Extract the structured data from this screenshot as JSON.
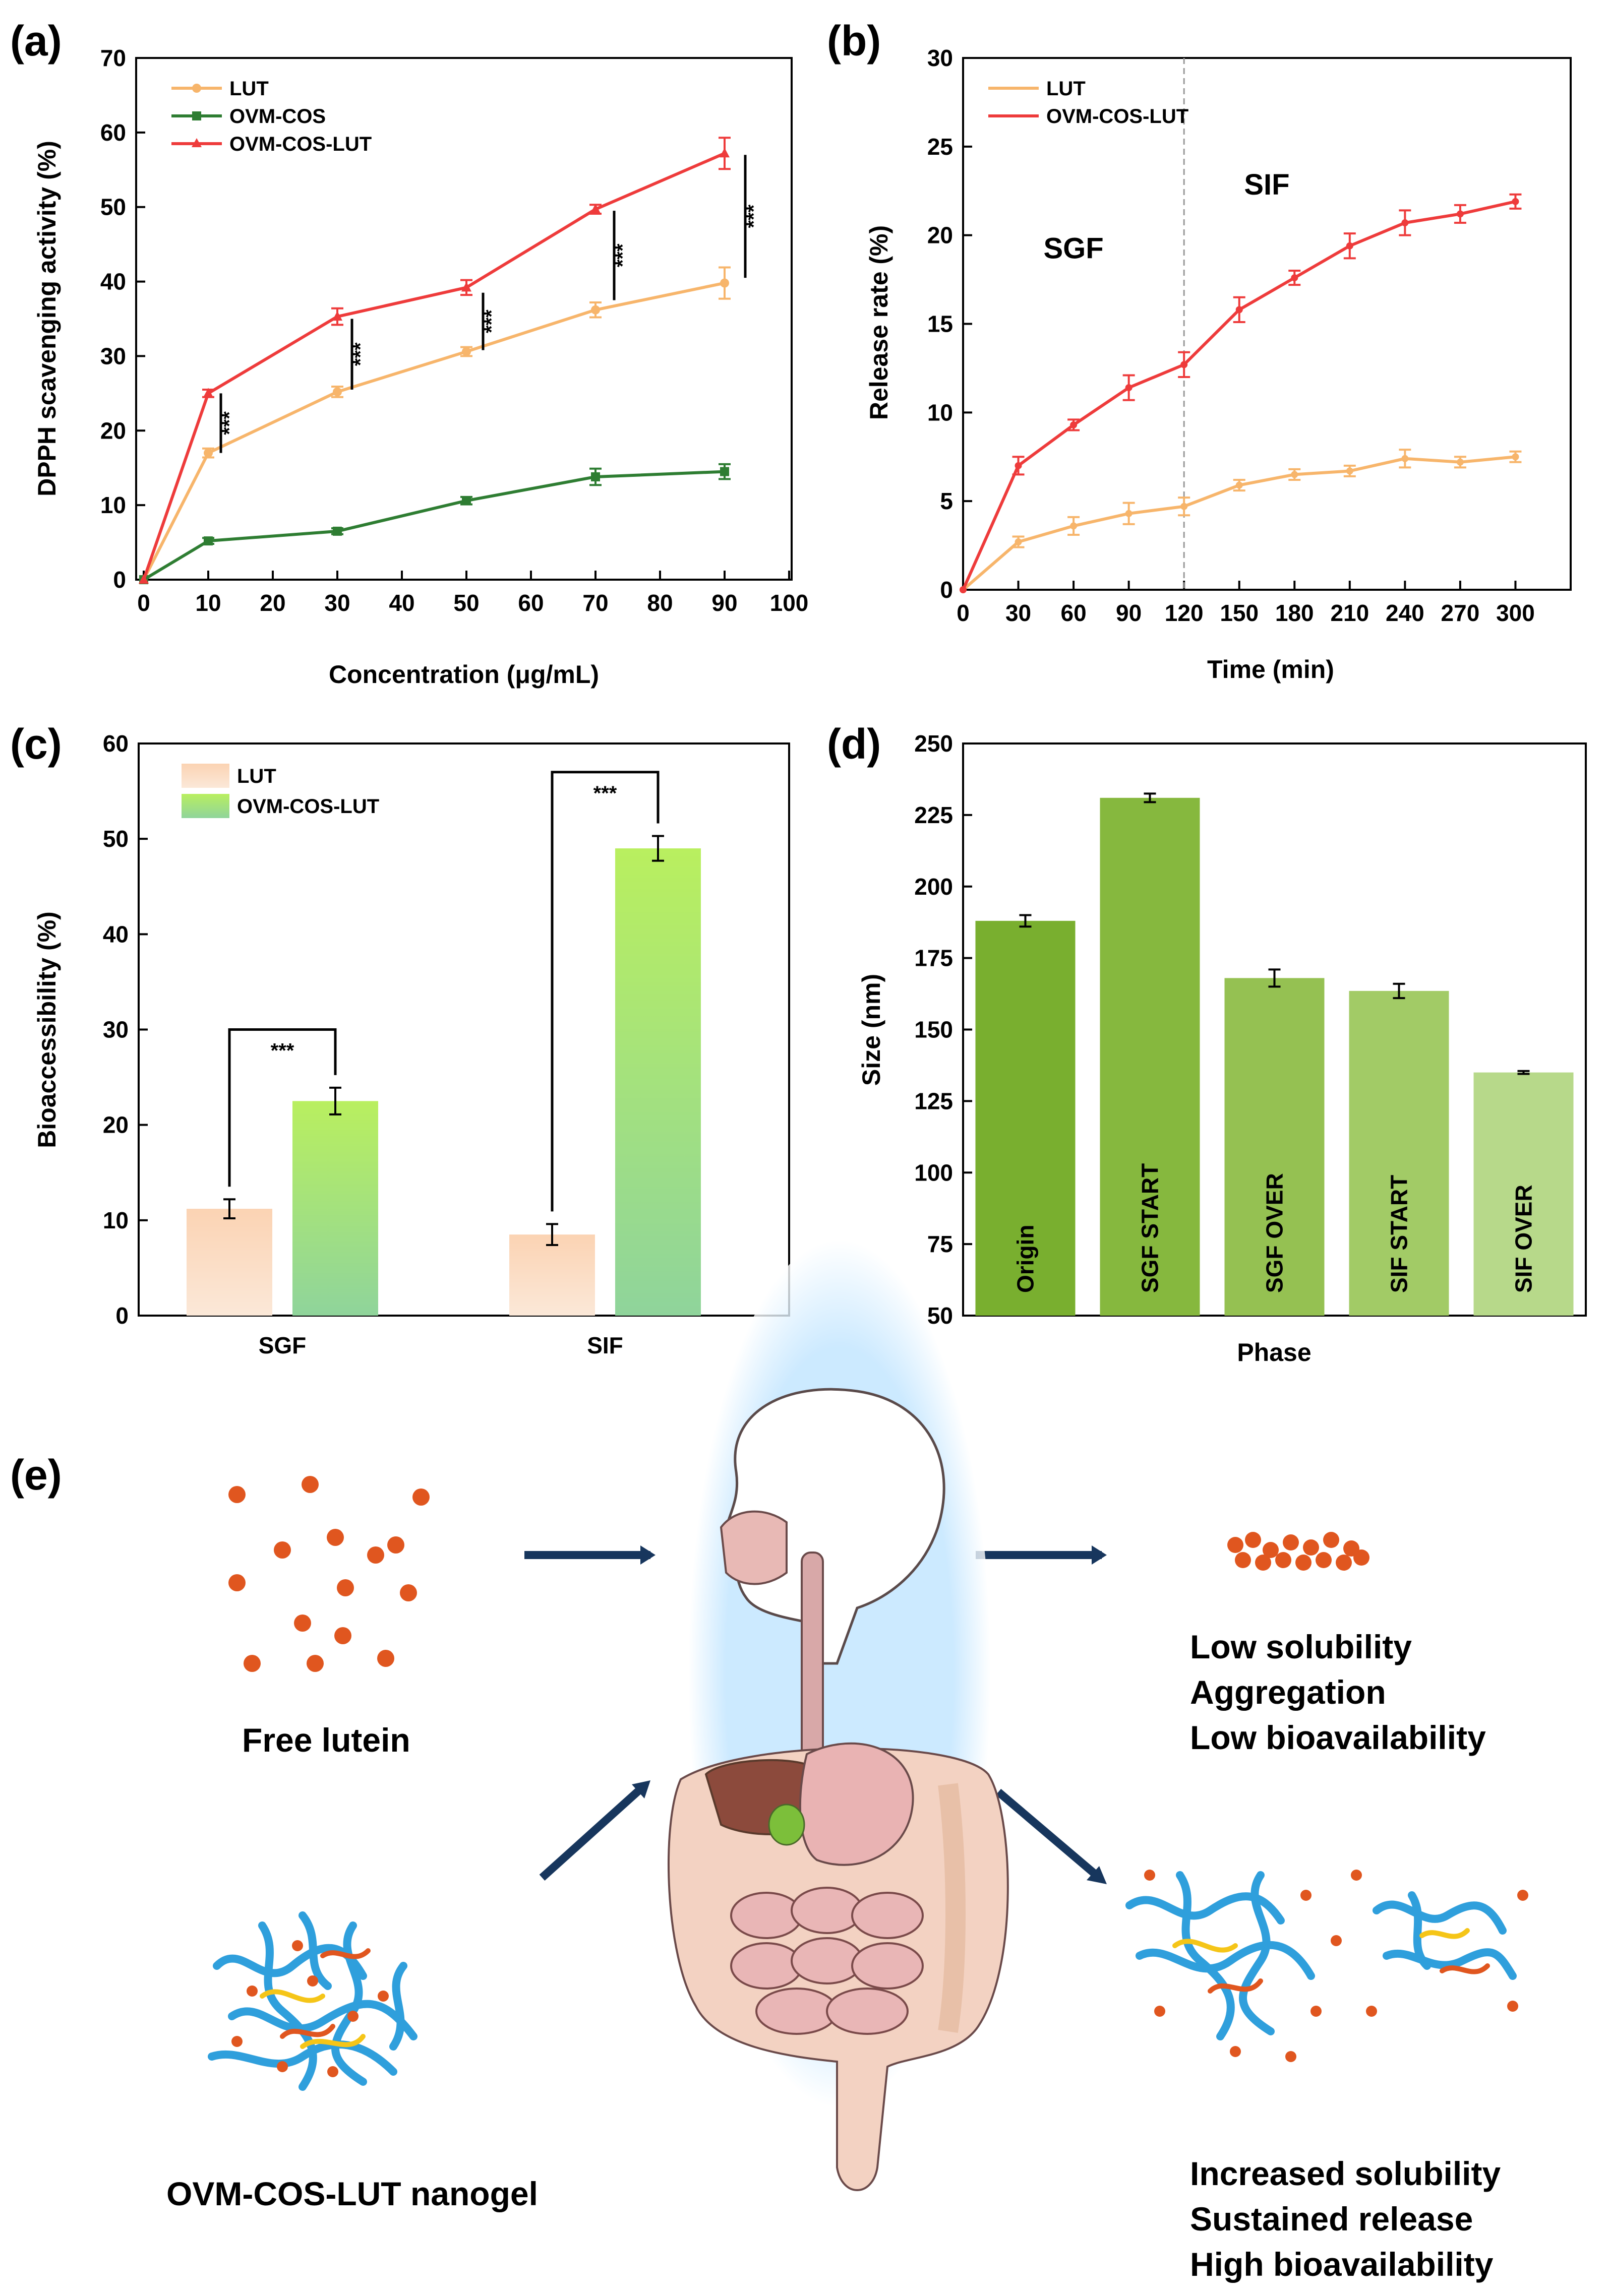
{
  "panel_labels": {
    "a": "(a)",
    "b": "(b)",
    "c": "(c)",
    "d": "(d)",
    "e": "(e)"
  },
  "chart_data": [
    {
      "id": "a",
      "type": "line",
      "xlabel": "Concentration (μg/mL)",
      "ylabel": "DPPH scavenging activity (%)",
      "xlim": [
        0,
        100
      ],
      "ylim": [
        0,
        70
      ],
      "xticks": [
        0,
        10,
        20,
        30,
        40,
        50,
        60,
        70,
        80,
        90,
        100
      ],
      "yticks": [
        0,
        10,
        20,
        30,
        40,
        50,
        60,
        70
      ],
      "x": [
        0,
        10,
        30,
        50,
        70,
        90
      ],
      "series": [
        {
          "name": "LUT",
          "color": "#f7b56b",
          "marker": "circle",
          "values": [
            0,
            17,
            25.2,
            30.6,
            36.2,
            39.8
          ],
          "errors": [
            0,
            0.6,
            0.7,
            0.6,
            1.0,
            2.1
          ]
        },
        {
          "name": "OVM-COS",
          "color": "#2e7d32",
          "marker": "square",
          "values": [
            0,
            5.2,
            6.5,
            10.6,
            13.8,
            14.5
          ],
          "errors": [
            0,
            0.4,
            0.4,
            0.5,
            1.1,
            1.0
          ]
        },
        {
          "name": "OVM-COS-LUT",
          "color": "#ee3b3b",
          "marker": "triangle",
          "values": [
            0,
            25,
            35.3,
            39.2,
            49.7,
            57.2
          ],
          "errors": [
            0,
            0.5,
            1.1,
            1.0,
            0.6,
            2.1
          ]
        }
      ],
      "significance": [
        {
          "x": 10,
          "y_low": 17,
          "y_high": 25,
          "label": "***"
        },
        {
          "x": 30,
          "y_low": 25.5,
          "y_high": 35,
          "label": "***"
        },
        {
          "x": 50,
          "y_low": 30.8,
          "y_high": 38.5,
          "label": "***"
        },
        {
          "x": 70,
          "y_low": 37.5,
          "y_high": 49.5,
          "label": "***"
        },
        {
          "x": 90,
          "y_low": 40.5,
          "y_high": 57,
          "label": "***"
        }
      ]
    },
    {
      "id": "b",
      "type": "line",
      "xlabel": "Time (min)",
      "ylabel": "Release rate (%)",
      "xlim": [
        0,
        330
      ],
      "ylim": [
        0,
        30
      ],
      "xticks": [
        0,
        30,
        60,
        90,
        120,
        150,
        180,
        210,
        240,
        270,
        300
      ],
      "yticks": [
        0,
        5,
        10,
        15,
        20,
        25,
        30
      ],
      "x": [
        0,
        30,
        60,
        90,
        120,
        150,
        180,
        210,
        240,
        270,
        300
      ],
      "series": [
        {
          "name": "LUT",
          "color": "#f7b56b",
          "values": [
            0,
            2.7,
            3.6,
            4.3,
            4.7,
            5.9,
            6.5,
            6.7,
            7.4,
            7.2,
            7.5
          ],
          "errors": [
            0,
            0.3,
            0.5,
            0.6,
            0.5,
            0.3,
            0.3,
            0.3,
            0.5,
            0.3,
            0.3
          ]
        },
        {
          "name": "OVM-COS-LUT",
          "color": "#ee3b3b",
          "values": [
            0,
            7.0,
            9.3,
            11.4,
            12.7,
            15.8,
            17.6,
            19.4,
            20.7,
            21.2,
            21.9
          ],
          "errors": [
            0,
            0.5,
            0.3,
            0.7,
            0.7,
            0.7,
            0.4,
            0.7,
            0.7,
            0.5,
            0.4
          ]
        }
      ],
      "divider_x": 120,
      "annotations": [
        {
          "text": "SGF",
          "x": 60,
          "y": 18.7
        },
        {
          "text": "SIF",
          "x": 165,
          "y": 22.3
        }
      ]
    },
    {
      "id": "c",
      "type": "bar",
      "ylabel": "Bioaccessibility (%)",
      "ylim": [
        0,
        60
      ],
      "yticks": [
        0,
        10,
        20,
        30,
        40,
        50,
        60
      ],
      "categories": [
        "SGF",
        "SIF"
      ],
      "series": [
        {
          "name": "LUT",
          "values": [
            11.2,
            8.5
          ],
          "errors": [
            1.0,
            1.1
          ]
        },
        {
          "name": "OVM-COS-LUT",
          "values": [
            22.5,
            49.0
          ],
          "errors": [
            1.4,
            1.3
          ]
        }
      ],
      "significance": [
        {
          "group": 0,
          "label": "***"
        },
        {
          "group": 1,
          "label": "***"
        }
      ]
    },
    {
      "id": "d",
      "type": "bar",
      "xlabel": "Phase",
      "ylabel": "Size (nm)",
      "ylim": [
        50,
        250
      ],
      "yticks": [
        50,
        75,
        100,
        125,
        150,
        175,
        200,
        225,
        250
      ],
      "categories": [
        "Origin",
        "SGF START",
        "SGF OVER",
        "SIF START",
        "SIF OVER"
      ],
      "values": [
        188,
        231,
        168,
        163.5,
        135
      ],
      "errors": [
        2,
        1.5,
        3,
        2.5,
        0.5
      ],
      "colors": [
        "#79af2f",
        "#86b83e",
        "#95c152",
        "#a2cb66",
        "#b7d98a"
      ]
    }
  ],
  "panel_e": {
    "free_lutein": "Free lutein",
    "nanogel": "OVM-COS-LUT nanogel",
    "outcome_free": [
      "Low solubility",
      "Aggregation",
      "Low bioavailability"
    ],
    "outcome_nanogel": [
      "Increased solubility",
      "Sustained release",
      "High bioavailability"
    ]
  }
}
